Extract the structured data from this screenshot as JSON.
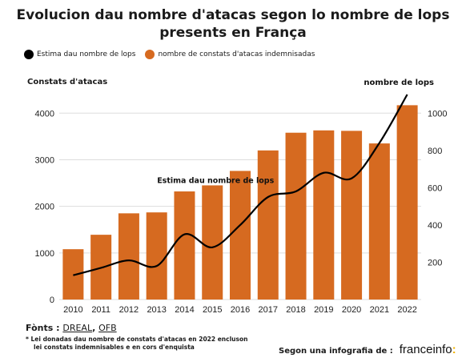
{
  "chart_data": {
    "type": "bar",
    "title_line1": "Evolucion dau nombre d'atacas segon lo nombre de lops",
    "title_line2": "presents en França",
    "legend": {
      "line_label": "Estima dau nombre de lops",
      "bar_label": "nombre de constats d'atacas indemnisadas"
    },
    "ylabel_left": "Constats d'atacas",
    "ylim_left": [
      0,
      4400
    ],
    "yticks_left": [
      0,
      1000,
      2000,
      3000,
      4000
    ],
    "ylim_right": [
      0,
      1100
    ],
    "yticks_right": [
      200,
      400,
      600,
      800,
      1000
    ],
    "categories": [
      "2010",
      "2011",
      "2012",
      "2013",
      "2014",
      "2015",
      "2016",
      "2017",
      "2018",
      "2019",
      "2020",
      "2021",
      "2022"
    ],
    "series": [
      {
        "name": "nombre de constats d'atacas indemnisadas",
        "type": "bar",
        "axis": "left",
        "color": "#d66a20",
        "values": [
          1080,
          1390,
          1850,
          1870,
          2320,
          2450,
          2760,
          3200,
          3580,
          3630,
          3620,
          3350,
          4170
        ]
      },
      {
        "name": "Estima dau nombre de lops",
        "type": "line",
        "axis": "right",
        "color": "#000000",
        "values": [
          130,
          170,
          210,
          180,
          350,
          280,
          400,
          550,
          580,
          680,
          650,
          840,
          1100
        ]
      }
    ],
    "annotations": {
      "line_label": "Estima dau nombre de lops",
      "right_axis_label": "nombre de lops"
    },
    "grid": true
  },
  "footer": {
    "sources_label": "Fònts",
    "sources_sep": ":",
    "source_1": "DREAL",
    "source_2": "OFB",
    "source_comma": ",",
    "note_line1": "* Lei donadas dau nombre de constats d'atacas en 2022 encluson",
    "note_line2": "lei constats indemnisables e en cors d'enquista",
    "credit": "Segon una infografia de :",
    "brand_name": "franceinfo",
    "brand_colon": ":"
  },
  "colors": {
    "bar": "#d66a20",
    "line": "#000000",
    "grid": "#dddddd",
    "brand_accent": "#f2b300"
  }
}
